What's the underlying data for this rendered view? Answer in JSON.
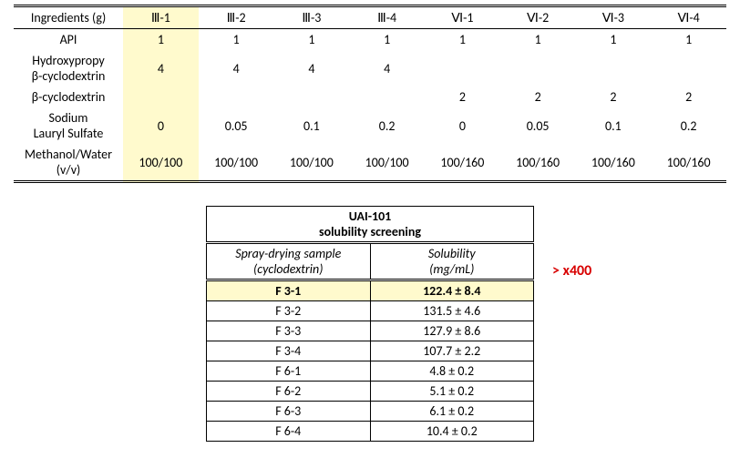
{
  "table1": {
    "header": [
      "Ingredients (g)",
      "Ⅲ-1",
      "Ⅲ-2",
      "Ⅲ-3",
      "Ⅲ-4",
      "Ⅵ-1",
      "Ⅵ-2",
      "Ⅵ-3",
      "Ⅵ-4"
    ],
    "rows": [
      {
        "label": "API",
        "cells": [
          "1",
          "1",
          "1",
          "1",
          "1",
          "1",
          "1",
          "1"
        ]
      },
      {
        "label": "Hydroxypropy β-cyclodextrin",
        "cells": [
          "4",
          "4",
          "4",
          "4",
          "",
          "",
          "",
          ""
        ]
      },
      {
        "label": "β-cyclodextrin",
        "cells": [
          "",
          "",
          "",
          "",
          "2",
          "2",
          "2",
          "2"
        ]
      },
      {
        "label": "Sodium Lauryl Sulfate",
        "cells": [
          "0",
          "0.05",
          "0.1",
          "0.2",
          "0",
          "0.05",
          "0.1",
          "0.2"
        ]
      },
      {
        "label": "Methanol/Water (v/v)",
        "cells": [
          "100/100",
          "100/100",
          "100/100",
          "100/100",
          "100/160",
          "100/160",
          "100/160",
          "100/160"
        ]
      }
    ],
    "highlight_col": 1
  },
  "table2": {
    "title1": "UAI-101",
    "title2": "solubility screening",
    "col1_l1": "Spray-drying sample",
    "col1_l2": "(cyclodextrin)",
    "col2_l1": "Solubility",
    "col2_l2": "(mg/mL)",
    "rows": [
      {
        "c1": "F 3-1",
        "c2": "122.4 ± 8.4",
        "hl": true
      },
      {
        "c1": "F 3-2",
        "c2": "131.5 ± 4.6"
      },
      {
        "c1": "F 3-3",
        "c2": "127.9 ± 8.6"
      },
      {
        "c1": "F 3-4",
        "c2": "107.7 ± 2.2"
      },
      {
        "c1": "F 6-1",
        "c2": "4.8 ± 0.2"
      },
      {
        "c1": "F 6-2",
        "c2": "5.1 ± 0.2"
      },
      {
        "c1": "F 6-3",
        "c2": "6.1 ± 0.2"
      },
      {
        "c1": "F 6-4",
        "c2": "10.4 ± 0.2"
      }
    ]
  },
  "annotation": "> x400"
}
